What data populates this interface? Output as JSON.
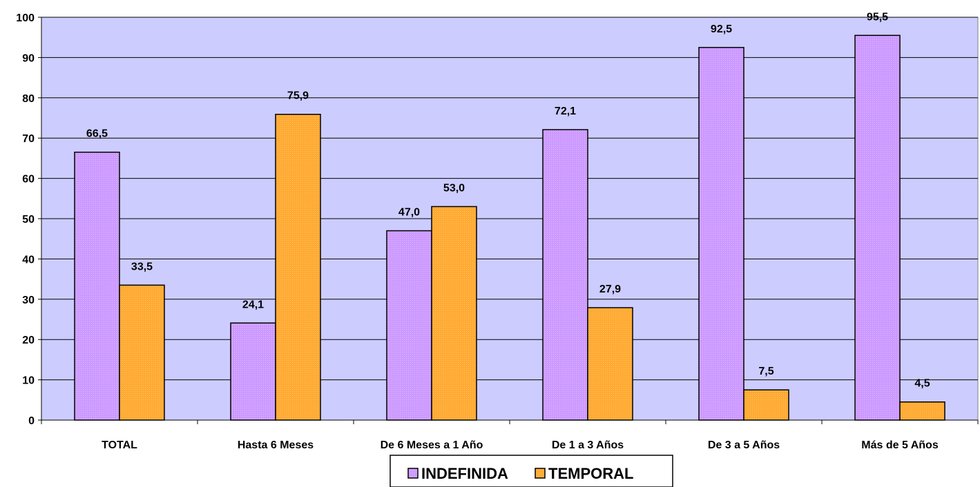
{
  "chart_data": {
    "type": "bar",
    "title": "",
    "xlabel": "",
    "ylabel": "",
    "categories": [
      "TOTAL",
      "Hasta 6 Meses",
      "De 6 Meses a 1 Año",
      "De 1 a 3 Años",
      "De 3 a 5 Años",
      "Más de 5 Años"
    ],
    "series": [
      {
        "name": "INDEFINIDA",
        "values": [
          66.5,
          24.1,
          47.0,
          72.1,
          92.5,
          95.5
        ],
        "labels": [
          "66,5",
          "24,1",
          "47,0",
          "72,1",
          "92,5",
          "95,5"
        ],
        "color": "#cc99ff"
      },
      {
        "name": "TEMPORAL",
        "values": [
          33.5,
          75.9,
          53.0,
          27.9,
          7.5,
          4.5
        ],
        "labels": [
          "33,5",
          "75,9",
          "53,0",
          "27,9",
          "7,5",
          "4,5"
        ],
        "color": "#ffaa33"
      }
    ],
    "ylim": [
      0,
      100
    ],
    "yticks": [
      "0",
      "10",
      "20",
      "30",
      "40",
      "50",
      "60",
      "70",
      "80",
      "90",
      "100"
    ],
    "grid": true,
    "plot_background": "#ccccff",
    "legend_position": "bottom"
  }
}
